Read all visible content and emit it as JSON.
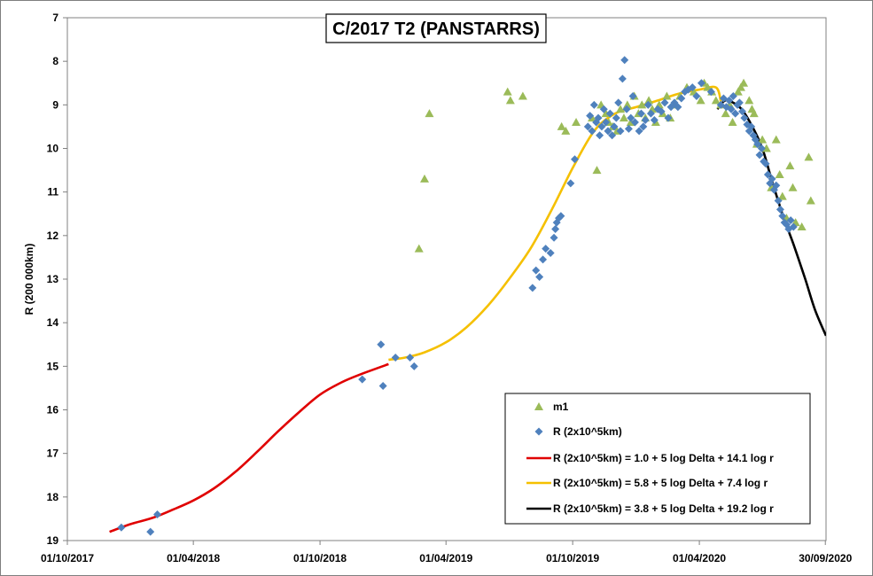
{
  "chart_data": {
    "type": "scatter",
    "title": "C/2017 T2 (PANSTARRS)",
    "xlabel": "",
    "ylabel": "R (200 000km)",
    "x_type": "date",
    "xlim": [
      "2017-10-01",
      "2020-10-01"
    ],
    "x_ticks": [
      "01/10/2017",
      "01/04/2018",
      "01/10/2018",
      "01/04/2019",
      "01/10/2019",
      "01/04/2020",
      "30/09/2020"
    ],
    "ylim": [
      7,
      19
    ],
    "y_inverted": true,
    "y_ticks": [
      "7",
      "8",
      "9",
      "10",
      "11",
      "12",
      "13",
      "14",
      "15",
      "16",
      "17",
      "18",
      "19"
    ],
    "grid": false,
    "legend_position": "bottom-right",
    "colors": {
      "m1": "#9bbb59",
      "R": "#4f81bd",
      "fit1": "#e00000",
      "fit2": "#f5c000",
      "fit3": "#000000"
    },
    "series": [
      {
        "name": "m1",
        "kind": "scatter",
        "marker": "triangle",
        "points": [
          [
            "2019-02-21",
            12.3
          ],
          [
            "2019-03-01",
            10.7
          ],
          [
            "2019-03-08",
            9.2
          ],
          [
            "2019-06-29",
            8.7
          ],
          [
            "2019-07-03",
            8.9
          ],
          [
            "2019-07-21",
            8.8
          ],
          [
            "2019-09-15",
            9.5
          ],
          [
            "2019-09-21",
            9.6
          ],
          [
            "2019-10-06",
            9.4
          ],
          [
            "2019-10-29",
            9.3
          ],
          [
            "2019-11-05",
            10.5
          ],
          [
            "2019-11-11",
            9.0
          ],
          [
            "2019-11-18",
            9.2
          ],
          [
            "2019-11-22",
            9.4
          ],
          [
            "2019-11-28",
            9.5
          ],
          [
            "2019-12-04",
            9.6
          ],
          [
            "2019-12-09",
            9.1
          ],
          [
            "2019-12-14",
            9.3
          ],
          [
            "2019-12-19",
            9.0
          ],
          [
            "2019-12-24",
            9.4
          ],
          [
            "2019-12-29",
            8.8
          ],
          [
            "2020-01-04",
            9.2
          ],
          [
            "2020-01-09",
            9.0
          ],
          [
            "2020-01-14",
            9.3
          ],
          [
            "2020-01-19",
            8.9
          ],
          [
            "2020-01-24",
            9.1
          ],
          [
            "2020-01-29",
            9.4
          ],
          [
            "2020-02-03",
            9.0
          ],
          [
            "2020-02-08",
            9.2
          ],
          [
            "2020-02-14",
            8.8
          ],
          [
            "2020-02-19",
            9.3
          ],
          [
            "2020-02-26",
            9.0
          ],
          [
            "2020-03-04",
            8.8
          ],
          [
            "2020-03-14",
            8.6
          ],
          [
            "2020-03-24",
            8.7
          ],
          [
            "2020-04-03",
            8.9
          ],
          [
            "2020-04-08",
            8.5
          ],
          [
            "2020-04-13",
            8.6
          ],
          [
            "2020-04-19",
            8.7
          ],
          [
            "2020-04-25",
            8.9
          ],
          [
            "2020-05-02",
            9.0
          ],
          [
            "2020-05-09",
            9.2
          ],
          [
            "2020-05-15",
            9.0
          ],
          [
            "2020-05-19",
            9.4
          ],
          [
            "2020-05-27",
            8.7
          ],
          [
            "2020-05-31",
            8.6
          ],
          [
            "2020-06-04",
            8.5
          ],
          [
            "2020-06-12",
            8.9
          ],
          [
            "2020-06-16",
            9.1
          ],
          [
            "2020-06-19",
            9.2
          ],
          [
            "2020-06-23",
            9.9
          ],
          [
            "2020-07-01",
            9.8
          ],
          [
            "2020-07-07",
            10.0
          ],
          [
            "2020-07-14",
            10.9
          ],
          [
            "2020-07-21",
            9.8
          ],
          [
            "2020-07-26",
            10.6
          ],
          [
            "2020-07-30",
            11.1
          ],
          [
            "2020-08-05",
            11.6
          ],
          [
            "2020-08-10",
            10.4
          ],
          [
            "2020-08-14",
            10.9
          ],
          [
            "2020-08-18",
            11.7
          ],
          [
            "2020-08-27",
            11.8
          ],
          [
            "2020-09-06",
            10.2
          ],
          [
            "2020-09-09",
            11.2
          ]
        ]
      },
      {
        "name": "R (2x10^5km)",
        "kind": "scatter",
        "marker": "diamond",
        "points": [
          [
            "2017-12-18",
            18.7
          ],
          [
            "2018-01-29",
            18.8
          ],
          [
            "2018-02-08",
            18.4
          ],
          [
            "2018-12-01",
            15.3
          ],
          [
            "2018-12-28",
            14.5
          ],
          [
            "2018-12-31",
            15.45
          ],
          [
            "2019-01-18",
            14.8
          ],
          [
            "2019-02-08",
            14.8
          ],
          [
            "2019-02-14",
            15.0
          ],
          [
            "2019-08-04",
            13.2
          ],
          [
            "2019-08-09",
            12.8
          ],
          [
            "2019-08-14",
            12.95
          ],
          [
            "2019-08-19",
            12.55
          ],
          [
            "2019-08-23",
            12.3
          ],
          [
            "2019-08-30",
            12.4
          ],
          [
            "2019-09-04",
            12.05
          ],
          [
            "2019-09-06",
            11.85
          ],
          [
            "2019-09-08",
            11.7
          ],
          [
            "2019-09-11",
            11.6
          ],
          [
            "2019-09-14",
            11.55
          ],
          [
            "2019-09-28",
            10.8
          ],
          [
            "2019-10-04",
            10.25
          ],
          [
            "2019-10-23",
            9.5
          ],
          [
            "2019-10-26",
            9.25
          ],
          [
            "2019-10-29",
            9.6
          ],
          [
            "2019-11-01",
            9.0
          ],
          [
            "2019-11-04",
            9.4
          ],
          [
            "2019-11-07",
            9.3
          ],
          [
            "2019-11-09",
            9.7
          ],
          [
            "2019-11-12",
            9.5
          ],
          [
            "2019-11-15",
            9.1
          ],
          [
            "2019-11-18",
            9.4
          ],
          [
            "2019-11-21",
            9.6
          ],
          [
            "2019-11-24",
            9.2
          ],
          [
            "2019-11-27",
            9.7
          ],
          [
            "2019-11-30",
            9.5
          ],
          [
            "2019-12-03",
            9.3
          ],
          [
            "2019-12-06",
            8.95
          ],
          [
            "2019-12-09",
            9.6
          ],
          [
            "2019-12-12",
            8.4
          ],
          [
            "2019-12-15",
            7.97
          ],
          [
            "2019-12-18",
            9.1
          ],
          [
            "2019-12-21",
            9.55
          ],
          [
            "2019-12-24",
            9.3
          ],
          [
            "2019-12-27",
            8.8
          ],
          [
            "2019-12-30",
            9.4
          ],
          [
            "2020-01-05",
            9.6
          ],
          [
            "2020-01-08",
            9.2
          ],
          [
            "2020-01-11",
            9.5
          ],
          [
            "2020-01-14",
            9.35
          ],
          [
            "2020-01-18",
            9.0
          ],
          [
            "2020-01-22",
            9.2
          ],
          [
            "2020-01-27",
            9.35
          ],
          [
            "2020-02-01",
            9.1
          ],
          [
            "2020-02-06",
            9.15
          ],
          [
            "2020-02-11",
            8.95
          ],
          [
            "2020-02-16",
            9.3
          ],
          [
            "2020-02-20",
            9.05
          ],
          [
            "2020-02-25",
            8.95
          ],
          [
            "2020-03-01",
            9.05
          ],
          [
            "2020-03-06",
            8.85
          ],
          [
            "2020-03-11",
            8.7
          ],
          [
            "2020-03-16",
            8.65
          ],
          [
            "2020-03-22",
            8.6
          ],
          [
            "2020-03-28",
            8.8
          ],
          [
            "2020-04-04",
            8.5
          ],
          [
            "2020-04-18",
            8.7
          ],
          [
            "2020-05-02",
            9.0
          ],
          [
            "2020-05-06",
            8.85
          ],
          [
            "2020-05-10",
            9.05
          ],
          [
            "2020-05-14",
            8.9
          ],
          [
            "2020-05-17",
            9.1
          ],
          [
            "2020-05-20",
            8.8
          ],
          [
            "2020-05-23",
            9.2
          ],
          [
            "2020-05-26",
            9.0
          ],
          [
            "2020-05-29",
            8.95
          ],
          [
            "2020-06-02",
            9.15
          ],
          [
            "2020-06-05",
            9.3
          ],
          [
            "2020-06-09",
            9.45
          ],
          [
            "2020-06-12",
            9.6
          ],
          [
            "2020-06-15",
            9.5
          ],
          [
            "2020-06-18",
            9.7
          ],
          [
            "2020-06-21",
            9.8
          ],
          [
            "2020-06-24",
            9.9
          ],
          [
            "2020-06-27",
            10.15
          ],
          [
            "2020-06-30",
            10.0
          ],
          [
            "2020-07-03",
            10.3
          ],
          [
            "2020-07-06",
            10.35
          ],
          [
            "2020-07-09",
            10.6
          ],
          [
            "2020-07-12",
            10.8
          ],
          [
            "2020-07-15",
            10.7
          ],
          [
            "2020-07-18",
            10.95
          ],
          [
            "2020-07-21",
            10.85
          ],
          [
            "2020-07-24",
            11.2
          ],
          [
            "2020-07-27",
            11.4
          ],
          [
            "2020-07-30",
            11.55
          ],
          [
            "2020-08-02",
            11.7
          ],
          [
            "2020-08-05",
            11.75
          ],
          [
            "2020-08-08",
            11.85
          ],
          [
            "2020-08-11",
            11.65
          ],
          [
            "2020-08-15",
            11.8
          ]
        ]
      },
      {
        "name": "R (2x10^5km) = 1.0 + 5 log Delta + 14.1 log r",
        "kind": "line",
        "points": [
          [
            "2017-12-01",
            18.8
          ],
          [
            "2018-01-01",
            18.62
          ],
          [
            "2018-02-01",
            18.48
          ],
          [
            "2018-03-01",
            18.3
          ],
          [
            "2018-04-01",
            18.08
          ],
          [
            "2018-05-01",
            17.8
          ],
          [
            "2018-06-01",
            17.42
          ],
          [
            "2018-07-01",
            16.98
          ],
          [
            "2018-08-01",
            16.5
          ],
          [
            "2018-09-01",
            16.05
          ],
          [
            "2018-10-01",
            15.65
          ],
          [
            "2018-11-01",
            15.37
          ],
          [
            "2018-12-01",
            15.17
          ],
          [
            "2019-01-08",
            14.95
          ]
        ]
      },
      {
        "name": "R (2x10^5km) = 5.8 + 5 log Delta + 7.4 log r",
        "kind": "line",
        "points": [
          [
            "2019-01-08",
            14.85
          ],
          [
            "2019-02-01",
            14.8
          ],
          [
            "2019-03-01",
            14.68
          ],
          [
            "2019-04-01",
            14.45
          ],
          [
            "2019-05-01",
            14.1
          ],
          [
            "2019-06-01",
            13.6
          ],
          [
            "2019-07-01",
            13.0
          ],
          [
            "2019-08-01",
            12.3
          ],
          [
            "2019-09-01",
            11.4
          ],
          [
            "2019-10-01",
            10.45
          ],
          [
            "2019-11-01",
            9.6
          ],
          [
            "2019-12-01",
            9.2
          ],
          [
            "2020-01-01",
            9.05
          ],
          [
            "2020-02-01",
            8.9
          ],
          [
            "2020-03-01",
            8.75
          ],
          [
            "2020-04-01",
            8.65
          ],
          [
            "2020-04-25",
            8.6
          ],
          [
            "2020-05-02",
            8.92
          ]
        ]
      },
      {
        "name": "R (2x10^5km) = 3.8 + 5 log Delta + 19.2 log r",
        "kind": "line",
        "points": [
          [
            "2020-04-27",
            9.1
          ],
          [
            "2020-05-08",
            8.9
          ],
          [
            "2020-05-20",
            8.95
          ],
          [
            "2020-06-01",
            9.1
          ],
          [
            "2020-06-15",
            9.45
          ],
          [
            "2020-07-01",
            10.0
          ],
          [
            "2020-07-15",
            10.75
          ],
          [
            "2020-08-01",
            11.6
          ],
          [
            "2020-08-15",
            12.2
          ],
          [
            "2020-09-01",
            13.0
          ],
          [
            "2020-09-15",
            13.7
          ],
          [
            "2020-10-01",
            14.3
          ]
        ]
      }
    ]
  }
}
